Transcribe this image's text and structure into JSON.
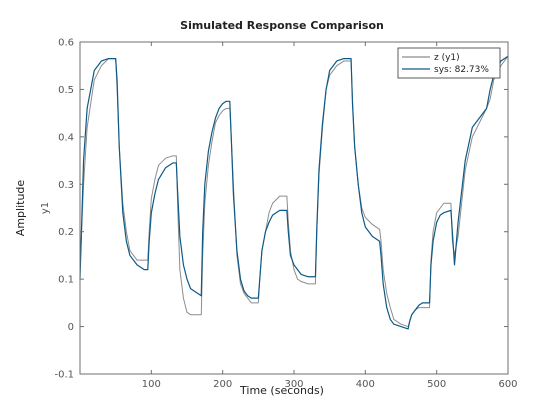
{
  "chart_data": {
    "type": "line",
    "title": "Simulated Response Comparison",
    "xlabel": "Time (seconds)",
    "ylabel_outer": "Amplitude",
    "ylabel_inner": "y1",
    "xlim": [
      0,
      600
    ],
    "ylim": [
      -0.1,
      0.6
    ],
    "xticks": [
      100,
      200,
      300,
      400,
      500,
      600
    ],
    "yticks": [
      -0.1,
      0,
      0.1,
      0.2,
      0.3,
      0.4,
      0.5,
      0.6
    ],
    "legend_position": "top-right",
    "series": [
      {
        "name": "z (y1)",
        "color": "#8c8c8c",
        "x": [
          0,
          5,
          10,
          20,
          30,
          40,
          50,
          52,
          55,
          60,
          65,
          70,
          80,
          90,
          95,
          97,
          100,
          105,
          110,
          120,
          130,
          135,
          137,
          140,
          145,
          150,
          155,
          160,
          165,
          170,
          172,
          175,
          180,
          185,
          190,
          195,
          200,
          205,
          210,
          212,
          215,
          220,
          225,
          230,
          235,
          240,
          245,
          250,
          252,
          255,
          260,
          265,
          270,
          280,
          290,
          292,
          295,
          300,
          305,
          310,
          320,
          330,
          332,
          335,
          340,
          345,
          350,
          360,
          370,
          380,
          382,
          385,
          390,
          395,
          400,
          410,
          420,
          422,
          425,
          430,
          435,
          440,
          450,
          460,
          462,
          465,
          470,
          475,
          480,
          485,
          490,
          492,
          495,
          500,
          505,
          510,
          520,
          522,
          525,
          530,
          540,
          550,
          560,
          570,
          575,
          580,
          590,
          600
        ],
        "y": [
          0.12,
          0.3,
          0.42,
          0.52,
          0.55,
          0.565,
          0.565,
          0.5,
          0.38,
          0.26,
          0.2,
          0.16,
          0.14,
          0.14,
          0.14,
          0.2,
          0.27,
          0.31,
          0.34,
          0.355,
          0.36,
          0.36,
          0.25,
          0.12,
          0.06,
          0.03,
          0.025,
          0.025,
          0.025,
          0.025,
          0.15,
          0.26,
          0.34,
          0.39,
          0.43,
          0.445,
          0.455,
          0.46,
          0.46,
          0.4,
          0.3,
          0.15,
          0.09,
          0.07,
          0.06,
          0.05,
          0.05,
          0.05,
          0.1,
          0.16,
          0.2,
          0.24,
          0.26,
          0.275,
          0.275,
          0.22,
          0.16,
          0.12,
          0.1,
          0.095,
          0.09,
          0.09,
          0.2,
          0.32,
          0.42,
          0.5,
          0.53,
          0.55,
          0.56,
          0.56,
          0.48,
          0.38,
          0.3,
          0.25,
          0.23,
          0.215,
          0.205,
          0.18,
          0.12,
          0.07,
          0.04,
          0.015,
          0.005,
          0.0,
          0.01,
          0.025,
          0.035,
          0.04,
          0.04,
          0.04,
          0.04,
          0.14,
          0.2,
          0.24,
          0.25,
          0.26,
          0.26,
          0.18,
          0.15,
          0.19,
          0.33,
          0.4,
          0.43,
          0.46,
          0.48,
          0.52,
          0.55,
          0.57
        ]
      },
      {
        "name": "sys: 82.73%",
        "color": "#0e5a86",
        "x": [
          0,
          5,
          10,
          20,
          30,
          40,
          50,
          52,
          55,
          60,
          65,
          70,
          80,
          90,
          95,
          97,
          100,
          105,
          110,
          120,
          130,
          135,
          137,
          140,
          145,
          150,
          155,
          160,
          165,
          170,
          172,
          175,
          180,
          185,
          190,
          195,
          200,
          205,
          210,
          212,
          215,
          220,
          225,
          230,
          235,
          240,
          245,
          250,
          252,
          255,
          260,
          265,
          270,
          280,
          290,
          292,
          295,
          300,
          305,
          310,
          320,
          330,
          332,
          335,
          340,
          345,
          350,
          360,
          370,
          380,
          382,
          385,
          390,
          395,
          400,
          410,
          420,
          422,
          425,
          430,
          435,
          440,
          450,
          460,
          462,
          465,
          470,
          475,
          480,
          485,
          490,
          492,
          495,
          500,
          505,
          510,
          520,
          522,
          525,
          530,
          540,
          550,
          560,
          570,
          575,
          580,
          590,
          600
        ],
        "y": [
          0.1,
          0.35,
          0.46,
          0.54,
          0.56,
          0.565,
          0.565,
          0.52,
          0.38,
          0.24,
          0.18,
          0.15,
          0.13,
          0.12,
          0.12,
          0.18,
          0.24,
          0.28,
          0.31,
          0.335,
          0.345,
          0.345,
          0.28,
          0.19,
          0.13,
          0.1,
          0.08,
          0.075,
          0.07,
          0.065,
          0.2,
          0.3,
          0.37,
          0.41,
          0.44,
          0.46,
          0.47,
          0.475,
          0.475,
          0.4,
          0.28,
          0.16,
          0.1,
          0.075,
          0.065,
          0.06,
          0.06,
          0.06,
          0.1,
          0.16,
          0.2,
          0.22,
          0.235,
          0.245,
          0.245,
          0.2,
          0.15,
          0.13,
          0.12,
          0.11,
          0.105,
          0.105,
          0.21,
          0.33,
          0.43,
          0.5,
          0.54,
          0.56,
          0.565,
          0.565,
          0.47,
          0.38,
          0.3,
          0.24,
          0.21,
          0.19,
          0.18,
          0.15,
          0.09,
          0.04,
          0.015,
          0.005,
          0.0,
          -0.005,
          0.01,
          0.025,
          0.035,
          0.045,
          0.05,
          0.05,
          0.05,
          0.13,
          0.18,
          0.22,
          0.235,
          0.24,
          0.245,
          0.2,
          0.13,
          0.22,
          0.35,
          0.42,
          0.44,
          0.46,
          0.5,
          0.53,
          0.56,
          0.57
        ]
      }
    ]
  }
}
